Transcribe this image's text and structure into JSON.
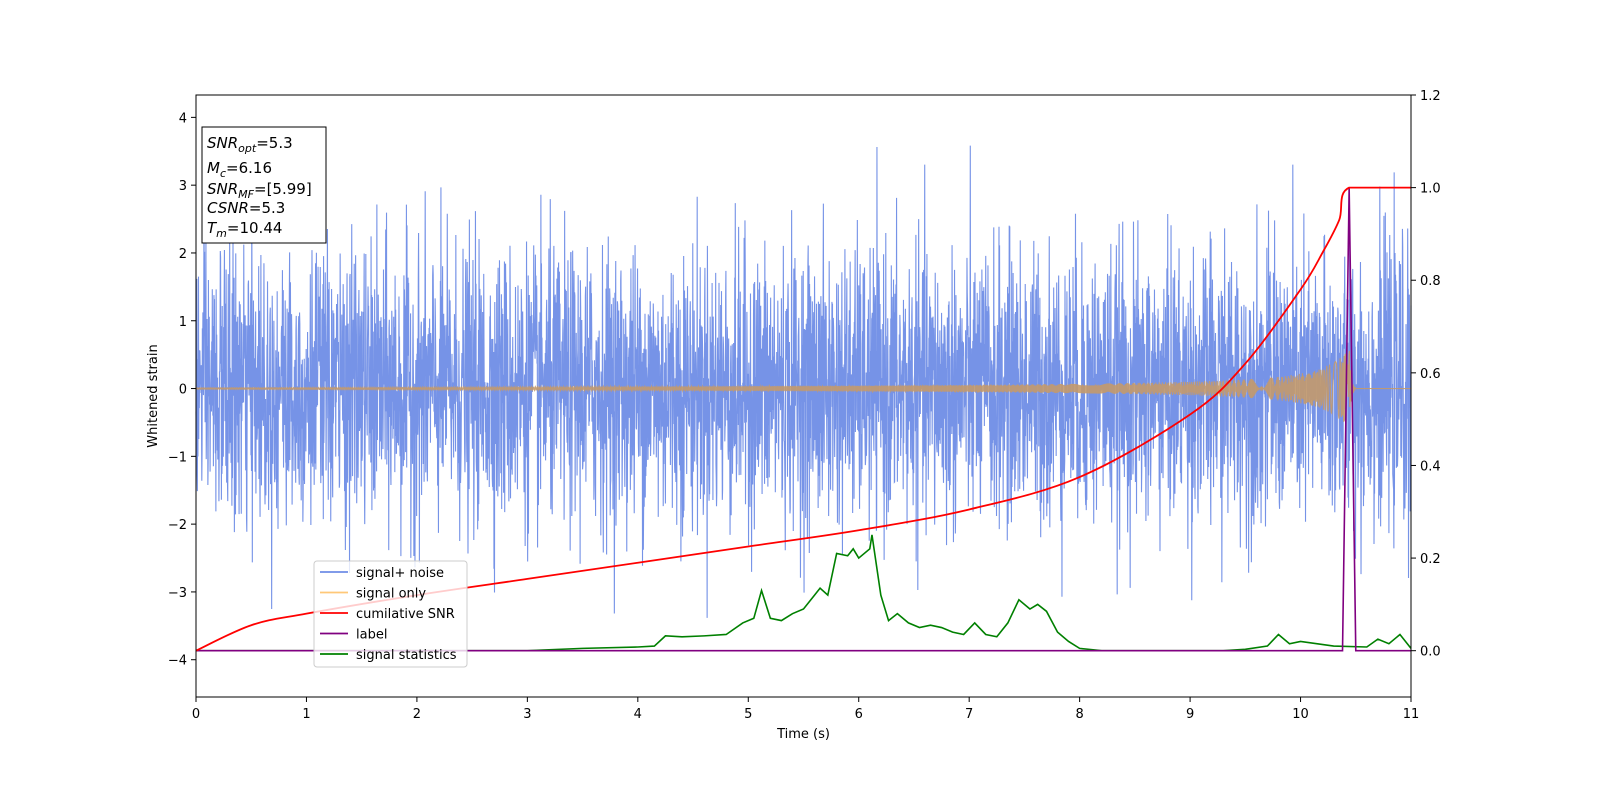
{
  "chart_data": {
    "type": "line",
    "xlabel": "Time (s)",
    "ylabel": "Whitened strain",
    "xlim": [
      0,
      11
    ],
    "ylim_left": [
      -4.55,
      4.33
    ],
    "ylim_right": [
      -0.1,
      1.2
    ],
    "x_ticks": [
      "0",
      "1",
      "2",
      "3",
      "4",
      "5",
      "6",
      "7",
      "8",
      "9",
      "10",
      "11"
    ],
    "y_left_ticks": [
      "4",
      "3",
      "2",
      "1",
      "0",
      "−1",
      "−2",
      "−3",
      "−4"
    ],
    "y_right_ticks": [
      "1.2",
      "1.0",
      "0.8",
      "0.6",
      "0.4",
      "0.2",
      "0.0"
    ],
    "colors": {
      "signal_noise": "#6f8de6",
      "signal_only": "#c49a6c",
      "cumulative_snr": "#ff0000",
      "label": "#800080",
      "signal_statistics": "#008000"
    },
    "info_box": {
      "lines": [
        {
          "var": "SNR",
          "sub": "opt",
          "val": "=5.3"
        },
        {
          "var": "M",
          "sub": "c",
          "val": "=6.16"
        },
        {
          "var": "SNR",
          "sub": "MF",
          "val": "=[5.99]"
        },
        {
          "var": "CSNR",
          "sub": "",
          "val": "=5.3"
        },
        {
          "var": "T",
          "sub": "m",
          "val": "=10.44"
        }
      ]
    },
    "legend": {
      "placement": "lower-left",
      "entries": [
        "signal+ noise",
        "signal only",
        "cumilative SNR",
        "label",
        "signal statistics"
      ]
    },
    "series": [
      {
        "name": "signal+ noise",
        "axis": "left",
        "description_range": [
          -4.15,
          3.95
        ]
      },
      {
        "name": "signal only",
        "axis": "left",
        "merger_time": 10.44,
        "peak_amplitude": 0.65
      },
      {
        "name": "cumilative SNR",
        "axis": "right",
        "x": [
          0,
          0.5,
          1,
          2,
          3,
          4,
          5,
          6,
          7,
          8,
          9,
          9.5,
          10,
          10.2,
          10.35,
          10.44,
          11
        ],
        "y": [
          0.0,
          0.055,
          0.08,
          0.12,
          0.155,
          0.19,
          0.225,
          0.26,
          0.305,
          0.375,
          0.51,
          0.62,
          0.78,
          0.86,
          0.93,
          1.0,
          1.0
        ]
      },
      {
        "name": "label",
        "axis": "right",
        "x": [
          0,
          10.38,
          10.44,
          10.5,
          11
        ],
        "y": [
          0.0,
          0.0,
          1.0,
          0.0,
          0.0
        ]
      },
      {
        "name": "signal statistics",
        "axis": "right",
        "x": [
          0,
          1,
          2,
          3,
          3.5,
          4,
          4.15,
          4.25,
          4.4,
          4.6,
          4.8,
          4.95,
          5.05,
          5.12,
          5.2,
          5.3,
          5.4,
          5.5,
          5.6,
          5.65,
          5.72,
          5.8,
          5.9,
          5.95,
          6.0,
          6.1,
          6.12,
          6.2,
          6.27,
          6.35,
          6.45,
          6.55,
          6.65,
          6.75,
          6.85,
          6.95,
          7.05,
          7.15,
          7.25,
          7.35,
          7.45,
          7.55,
          7.62,
          7.7,
          7.8,
          7.9,
          8.0,
          8.2,
          8.5,
          9.0,
          9.3,
          9.5,
          9.7,
          9.8,
          9.9,
          10.0,
          10.3,
          10.6,
          10.7,
          10.8,
          10.9,
          11
        ],
        "y": [
          0.0,
          0.0,
          0.0,
          0.0,
          0.005,
          0.008,
          0.01,
          0.032,
          0.03,
          0.032,
          0.035,
          0.06,
          0.07,
          0.13,
          0.07,
          0.065,
          0.08,
          0.09,
          0.12,
          0.135,
          0.12,
          0.21,
          0.205,
          0.22,
          0.2,
          0.22,
          0.25,
          0.12,
          0.065,
          0.08,
          0.06,
          0.05,
          0.055,
          0.05,
          0.04,
          0.035,
          0.06,
          0.035,
          0.03,
          0.06,
          0.11,
          0.09,
          0.1,
          0.085,
          0.04,
          0.02,
          0.005,
          0.0,
          0.0,
          0.0,
          0.0,
          0.003,
          0.01,
          0.035,
          0.015,
          0.02,
          0.01,
          0.008,
          0.025,
          0.015,
          0.035,
          0.005
        ]
      }
    ]
  }
}
